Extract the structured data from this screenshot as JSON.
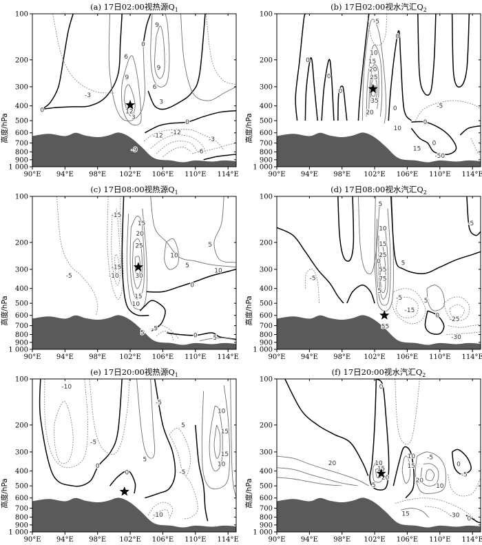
{
  "chart_data": [
    {
      "id": "a",
      "type": "contour",
      "title": "(a) 17日02:00视热源Q",
      "title_subscript": "1",
      "ylabel": "高度/hPa",
      "x_ticks": [
        "90°E",
        "94°E",
        "98°E",
        "102°E",
        "106°E",
        "110°E",
        "114°E"
      ],
      "y_ticks": [
        "100",
        "200",
        "300",
        "400",
        "500",
        "600",
        "700",
        "800",
        "900",
        "1 000"
      ],
      "xlim": [
        90,
        115
      ],
      "ylim": [
        1000,
        100
      ],
      "y_scale": "log",
      "star": {
        "lon": 102.0,
        "p": 395
      },
      "contour_labels": [
        {
          "text": "9",
          "lon": 105.3,
          "p": 118
        },
        {
          "text": "0",
          "lon": 103.6,
          "p": 158
        },
        {
          "text": "6",
          "lon": 101.5,
          "p": 190
        },
        {
          "text": "9",
          "lon": 105.5,
          "p": 225
        },
        {
          "text": "9",
          "lon": 101.6,
          "p": 260
        },
        {
          "text": "6",
          "lon": 105.0,
          "p": 300
        },
        {
          "text": "-3",
          "lon": 96.8,
          "p": 340
        },
        {
          "text": "3",
          "lon": 105.8,
          "p": 375
        },
        {
          "text": "0",
          "lon": 91.2,
          "p": 425
        },
        {
          "text": "12",
          "lon": 101.9,
          "p": 435
        },
        {
          "text": "3",
          "lon": 102.4,
          "p": 475
        },
        {
          "text": "0",
          "lon": 109.0,
          "p": 510
        },
        {
          "text": "-12",
          "lon": 107.6,
          "p": 595
        },
        {
          "text": "-12",
          "lon": 105.4,
          "p": 625
        },
        {
          "text": "-3",
          "lon": 112.0,
          "p": 660
        },
        {
          "text": "-9",
          "lon": 102.5,
          "p": 770
        },
        {
          "text": "-6",
          "lon": 110.6,
          "p": 790
        }
      ]
    },
    {
      "id": "b",
      "type": "contour",
      "title": "(b) 17日02:00视水汽汇Q",
      "title_subscript": "2",
      "ylabel": "高度/hPa",
      "x_ticks": [
        "90°E",
        "94°E",
        "98°E",
        "102°E",
        "106°E",
        "110°E",
        "114°E"
      ],
      "y_ticks": [
        "100",
        "200",
        "300",
        "400",
        "500",
        "600",
        "700",
        "800",
        "900",
        "1 000"
      ],
      "xlim": [
        90,
        115
      ],
      "ylim": [
        1000,
        100
      ],
      "y_scale": "log",
      "star": {
        "lon": 101.8,
        "p": 310
      },
      "contour_labels": [
        {
          "text": "-5",
          "lon": 102.2,
          "p": 112
        },
        {
          "text": "0",
          "lon": 104.8,
          "p": 140
        },
        {
          "text": "10",
          "lon": 101.9,
          "p": 180
        },
        {
          "text": "15",
          "lon": 101.7,
          "p": 205
        },
        {
          "text": "20",
          "lon": 101.8,
          "p": 230
        },
        {
          "text": "25",
          "lon": 101.9,
          "p": 260
        },
        {
          "text": "0",
          "lon": 93.8,
          "p": 200
        },
        {
          "text": "0",
          "lon": 96.4,
          "p": 255
        },
        {
          "text": "0",
          "lon": 97.8,
          "p": 320
        },
        {
          "text": "35",
          "lon": 102.0,
          "p": 370
        },
        {
          "text": "20",
          "lon": 101.4,
          "p": 440
        },
        {
          "text": "0",
          "lon": 104.5,
          "p": 415
        },
        {
          "text": "-5",
          "lon": 110.0,
          "p": 400
        },
        {
          "text": "0",
          "lon": 108.2,
          "p": 510
        },
        {
          "text": "10",
          "lon": 104.8,
          "p": 560
        },
        {
          "text": "15",
          "lon": 107.2,
          "p": 760
        },
        {
          "text": "-50",
          "lon": 110.0,
          "p": 845
        },
        {
          "text": "0",
          "lon": 109.3,
          "p": 700
        }
      ]
    },
    {
      "id": "c",
      "type": "contour",
      "title": "(c) 17日08:00视热源Q",
      "title_subscript": "1",
      "ylabel": "高度/hPa",
      "x_ticks": [
        "90°E",
        "94°E",
        "98°E",
        "102°E",
        "106°E",
        "110°E",
        "114°E"
      ],
      "y_ticks": [
        "100",
        "200",
        "300",
        "400",
        "500",
        "600",
        "700",
        "800",
        "900",
        "1 000"
      ],
      "xlim": [
        90,
        115
      ],
      "ylim": [
        1000,
        100
      ],
      "y_scale": "log",
      "star": {
        "lon": 103.0,
        "p": 290
      },
      "contour_labels": [
        {
          "text": "-15",
          "lon": 100.3,
          "p": 132
        },
        {
          "text": "15",
          "lon": 103.4,
          "p": 150
        },
        {
          "text": "20",
          "lon": 103.2,
          "p": 175
        },
        {
          "text": "25",
          "lon": 103.1,
          "p": 210
        },
        {
          "text": "-15",
          "lon": 100.3,
          "p": 290
        },
        {
          "text": "-10",
          "lon": 100.0,
          "p": 330
        },
        {
          "text": "30",
          "lon": 103.1,
          "p": 330
        },
        {
          "text": "-5",
          "lon": 94.5,
          "p": 330
        },
        {
          "text": "10",
          "lon": 107.4,
          "p": 243
        },
        {
          "text": "5",
          "lon": 111.8,
          "p": 207
        },
        {
          "text": "5",
          "lon": 109.0,
          "p": 282
        },
        {
          "text": "10",
          "lon": 112.8,
          "p": 305
        },
        {
          "text": "0",
          "lon": 109.6,
          "p": 380
        },
        {
          "text": "15",
          "lon": 103.0,
          "p": 450
        },
        {
          "text": "10",
          "lon": 102.7,
          "p": 505
        },
        {
          "text": "-5",
          "lon": 105.0,
          "p": 730
        },
        {
          "text": "5",
          "lon": 103.5,
          "p": 775
        },
        {
          "text": "0",
          "lon": 110.0,
          "p": 810
        },
        {
          "text": "5",
          "lon": 112.4,
          "p": 840
        }
      ]
    },
    {
      "id": "d",
      "type": "contour",
      "title": "(d) 17日08:00视水汽汇Q",
      "title_subscript": "2",
      "ylabel": "高度/hPa",
      "x_ticks": [
        "90°E",
        "94°E",
        "98°E",
        "102°E",
        "106°E",
        "110°E",
        "114°E"
      ],
      "y_ticks": [
        "100",
        "200",
        "300",
        "400",
        "500",
        "600",
        "700",
        "800",
        "900",
        "1 000"
      ],
      "xlim": [
        90,
        115
      ],
      "ylim": [
        1000,
        100
      ],
      "y_scale": "log",
      "star": {
        "lon": 103.2,
        "p": 600
      },
      "contour_labels": [
        {
          "text": "5",
          "lon": 102.7,
          "p": 112
        },
        {
          "text": "0",
          "lon": 102.5,
          "p": 265
        },
        {
          "text": "5",
          "lon": 105.5,
          "p": 272
        },
        {
          "text": "-5",
          "lon": 113.8,
          "p": 150
        },
        {
          "text": "-5",
          "lon": 94.4,
          "p": 342
        },
        {
          "text": "10",
          "lon": 103.0,
          "p": 162
        },
        {
          "text": "15",
          "lon": 103.0,
          "p": 205
        },
        {
          "text": "25",
          "lon": 103.0,
          "p": 242
        },
        {
          "text": "55",
          "lon": 103.0,
          "p": 300
        },
        {
          "text": "75",
          "lon": 103.0,
          "p": 345
        },
        {
          "text": "5",
          "lon": 102.6,
          "p": 415
        },
        {
          "text": "-5",
          "lon": 105.0,
          "p": 460
        },
        {
          "text": "5",
          "lon": 108.3,
          "p": 480
        },
        {
          "text": "-15",
          "lon": 106.3,
          "p": 555
        },
        {
          "text": "-25",
          "lon": 111.8,
          "p": 632
        },
        {
          "text": "-30",
          "lon": 112.0,
          "p": 830
        },
        {
          "text": "55",
          "lon": 103.3,
          "p": 705
        },
        {
          "text": "0",
          "lon": 109.7,
          "p": 600
        }
      ]
    },
    {
      "id": "e",
      "type": "contour",
      "title": "(e) 17日20:00视热源Q",
      "title_subscript": "1",
      "ylabel": "高度/hPa",
      "x_ticks": [
        "90°E",
        "94°E",
        "98°E",
        "102°E",
        "106°E",
        "110°E",
        "114°E"
      ],
      "y_ticks": [
        "100",
        "200",
        "300",
        "400",
        "500",
        "600",
        "700",
        "800",
        "900",
        "1 000"
      ],
      "xlim": [
        90,
        115
      ],
      "ylim": [
        1000,
        100
      ],
      "y_scale": "log",
      "star": {
        "lon": 101.3,
        "p": 545
      },
      "contour_labels": [
        {
          "text": "-10",
          "lon": 94.2,
          "p": 112
        },
        {
          "text": "-5",
          "lon": 97.5,
          "p": 258
        },
        {
          "text": "0",
          "lon": 98.0,
          "p": 370
        },
        {
          "text": "-5",
          "lon": 105.5,
          "p": 142
        },
        {
          "text": "5",
          "lon": 108.5,
          "p": 200
        },
        {
          "text": "10",
          "lon": 113.2,
          "p": 162
        },
        {
          "text": "15",
          "lon": 113.6,
          "p": 220
        },
        {
          "text": "15",
          "lon": 113.6,
          "p": 310
        },
        {
          "text": "10",
          "lon": 113.2,
          "p": 360
        },
        {
          "text": "5",
          "lon": 103.8,
          "p": 335
        },
        {
          "text": "0",
          "lon": 101.6,
          "p": 408
        },
        {
          "text": "-5",
          "lon": 108.4,
          "p": 405
        },
        {
          "text": "-10",
          "lon": 105.4,
          "p": 772
        }
      ]
    },
    {
      "id": "f",
      "type": "contour",
      "title": "(f) 17日20:00视水汽汇Q",
      "title_subscript": "2",
      "ylabel": "高度/hPa",
      "x_ticks": [
        "90°E",
        "94°E",
        "98°E",
        "102°E",
        "106°E",
        "110°E",
        "114°E"
      ],
      "y_ticks": [
        "100",
        "200",
        "300",
        "400",
        "500",
        "600",
        "700",
        "800",
        "900",
        "1 000"
      ],
      "xlim": [
        90,
        115
      ],
      "ylim": [
        1000,
        100
      ],
      "y_scale": "log",
      "star": {
        "lon": 102.8,
        "p": 415
      },
      "contour_labels": [
        {
          "text": "0",
          "lon": 102.8,
          "p": 112
        },
        {
          "text": "-5",
          "lon": 108.8,
          "p": 325
        },
        {
          "text": "20",
          "lon": 96.8,
          "p": 355
        },
        {
          "text": "10",
          "lon": 102.5,
          "p": 355
        },
        {
          "text": "15",
          "lon": 102.8,
          "p": 385
        },
        {
          "text": "20",
          "lon": 103.3,
          "p": 440
        },
        {
          "text": "10",
          "lon": 106.5,
          "p": 320
        },
        {
          "text": "15",
          "lon": 106.5,
          "p": 370
        },
        {
          "text": "20",
          "lon": 107.5,
          "p": 460
        },
        {
          "text": "10",
          "lon": 110.0,
          "p": 500
        },
        {
          "text": "0",
          "lon": 112.3,
          "p": 360
        },
        {
          "text": "-5",
          "lon": 113.0,
          "p": 420
        },
        {
          "text": "5",
          "lon": 101.9,
          "p": 495
        },
        {
          "text": "15",
          "lon": 105.8,
          "p": 760
        },
        {
          "text": "-30",
          "lon": 111.8,
          "p": 775
        },
        {
          "text": "0",
          "lon": 113.6,
          "p": 815
        }
      ]
    }
  ]
}
